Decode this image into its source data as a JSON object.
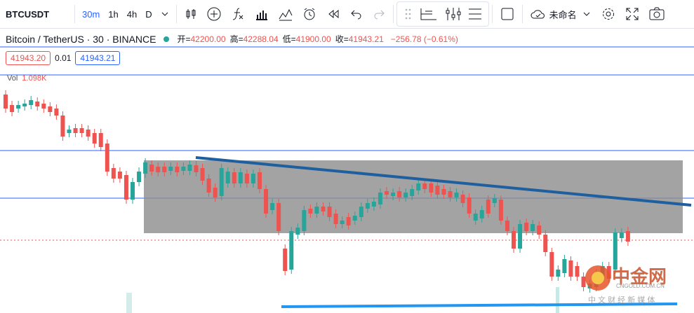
{
  "toolbar": {
    "symbol": "BTCUSDT",
    "timeframes": [
      "30m",
      "1h",
      "4h",
      "D"
    ],
    "layout_name": "未命名"
  },
  "header": {
    "title": "Bitcoin / TetherUS · 30 · BINANCE",
    "ohlc": [
      {
        "label": "开=",
        "value": "42200.00"
      },
      {
        "label": "高=",
        "value": "42288.04"
      },
      {
        "label": "低=",
        "value": "41900.00"
      },
      {
        "label": "收=",
        "value": "41943.21"
      }
    ],
    "change": "−256.78 (−0.61%)"
  },
  "prices": {
    "bid": "41943.20",
    "spread": "0.01",
    "ask": "41943.21"
  },
  "volume": {
    "label": "Vol",
    "value": "1.098K"
  },
  "watermark": {
    "brand": "中金网",
    "url": "CNGOLD.COM.CN",
    "slogan": "中 文 财 经 新 媒 体"
  }
}
